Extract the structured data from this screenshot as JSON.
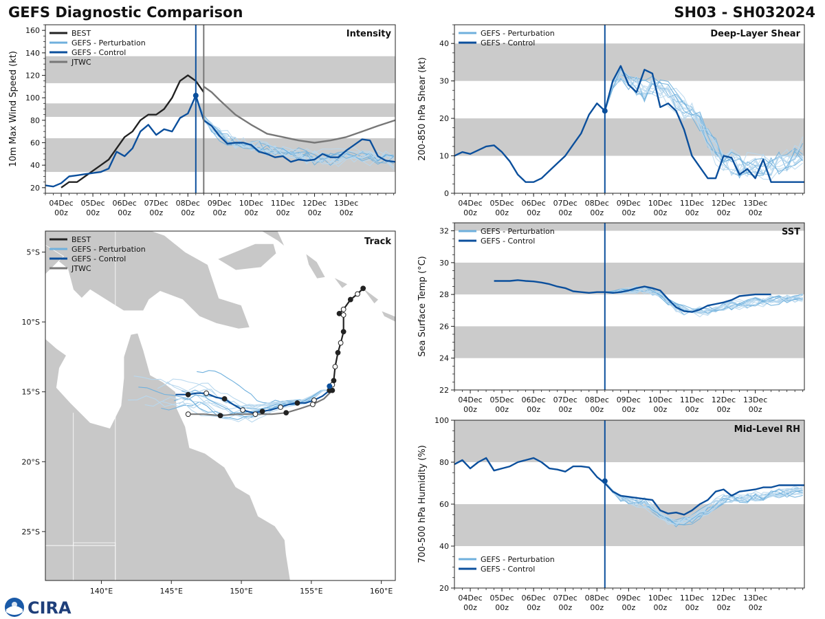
{
  "page": {
    "title_left": "GEFS Diagnostic Comparison",
    "title_right": "SH03 - SH032024",
    "logo_text": "CIRA"
  },
  "colors": {
    "best": "#222222",
    "pert": "#6fb0dd",
    "pert_light": "#b9d8ee",
    "control": "#0b4f9c",
    "jtwc": "#777777",
    "band": "#cbcbcb",
    "land": "#c8c8c8",
    "vline_analysis": "#0b4f9c",
    "vline_jtwc": "#777777"
  },
  "time_axis": {
    "domain": [
      -0.5,
      10.55
    ],
    "ticks": [
      0,
      1,
      2,
      3,
      4,
      5,
      6,
      7,
      8,
      9
    ],
    "labels": [
      [
        "04Dec",
        "00z"
      ],
      [
        "05Dec",
        "00z"
      ],
      [
        "06Dec",
        "00z"
      ],
      [
        "07Dec",
        "00z"
      ],
      [
        "08Dec",
        "00z"
      ],
      [
        "09Dec",
        "00z"
      ],
      [
        "10Dec",
        "00z"
      ],
      [
        "11Dec",
        "00z"
      ],
      [
        "12Dec",
        "00z"
      ],
      [
        "13Dec",
        "00z"
      ]
    ],
    "analysis_time": 4.25
  },
  "chart_data": [
    {
      "id": "intensity",
      "type": "line",
      "title": "Intensity",
      "ylabel": "10m Max Wind Speed (kt)",
      "ylim": [
        15,
        165
      ],
      "yticks": [
        20,
        40,
        60,
        80,
        100,
        120,
        140,
        160
      ],
      "bands": [
        [
          34,
          64
        ],
        [
          83,
          95
        ],
        [
          113,
          137
        ]
      ],
      "legend": [
        "BEST",
        "GEFS - Perturbation",
        "GEFS - Control",
        "JTWC"
      ],
      "vlines": [
        4.25,
        4.5
      ],
      "series": [
        {
          "name": "BEST",
          "style": "best",
          "x": [
            0,
            0.25,
            0.5,
            0.75,
            1,
            1.25,
            1.5,
            1.75,
            2,
            2.25,
            2.5,
            2.75,
            3,
            3.25,
            3.5,
            3.75,
            4,
            4.25,
            4.5
          ],
          "y": [
            20,
            25,
            25,
            30,
            35,
            40,
            45,
            55,
            65,
            70,
            80,
            85,
            85,
            90,
            100,
            115,
            120,
            115,
            105
          ]
        },
        {
          "name": "JTWC",
          "style": "jtwc",
          "x": [
            4.5,
            4.75,
            5,
            5.5,
            6,
            6.5,
            7,
            7.5,
            8,
            8.5,
            9,
            9.5,
            10,
            10.55
          ],
          "y": [
            110,
            105,
            98,
            85,
            76,
            68,
            65,
            62,
            60,
            62,
            65,
            70,
            75,
            80
          ]
        },
        {
          "name": "GEFS - Control",
          "style": "control",
          "x": [
            -0.5,
            -0.25,
            0,
            0.25,
            0.5,
            0.75,
            1,
            1.25,
            1.5,
            1.75,
            2,
            2.25,
            2.5,
            2.75,
            3,
            3.25,
            3.5,
            3.75,
            4,
            4.25,
            4.5,
            4.75,
            5,
            5.25,
            5.5,
            5.75,
            6,
            6.25,
            6.5,
            6.75,
            7,
            7.25,
            7.5,
            7.75,
            8,
            8.25,
            8.5,
            8.75,
            9,
            9.25,
            9.5,
            9.75,
            10,
            10.25,
            10.55
          ],
          "y": [
            22,
            21,
            24,
            30,
            31,
            32,
            33,
            34,
            37,
            52,
            48,
            55,
            70,
            76,
            67,
            72,
            70,
            82,
            86,
            102,
            80,
            75,
            66,
            59,
            60,
            60,
            58,
            52,
            50,
            47,
            48,
            43,
            45,
            44,
            45,
            50,
            47,
            47,
            53,
            58,
            63,
            62,
            48,
            44,
            43
          ]
        }
      ],
      "ensemble": {
        "start": 4.25,
        "step": 0.25,
        "base": [
          100,
          82,
          74,
          68,
          63,
          60,
          59,
          58,
          57,
          55,
          53,
          51,
          50,
          49,
          48,
          47,
          47,
          46,
          46,
          47,
          47,
          48,
          48,
          47,
          46,
          44
        ],
        "spread": 8,
        "members": 14
      },
      "analysis_point": {
        "x": 4.25,
        "y": 102
      }
    },
    {
      "id": "shear",
      "type": "line",
      "title": "Deep-Layer Shear",
      "ylabel": "200-850 hPa Shear (kt)",
      "ylim": [
        0,
        45
      ],
      "yticks": [
        0,
        10,
        20,
        30,
        40
      ],
      "bands": [
        [
          10,
          20
        ],
        [
          30,
          40
        ]
      ],
      "legend": [
        "GEFS - Perturbation",
        "GEFS - Control"
      ],
      "vlines": [
        4.25
      ],
      "series": [
        {
          "name": "GEFS - Control",
          "style": "control",
          "x": [
            -0.5,
            -0.25,
            0,
            0.25,
            0.5,
            0.75,
            1,
            1.25,
            1.5,
            1.75,
            2,
            2.25,
            2.5,
            2.75,
            3,
            3.25,
            3.5,
            3.75,
            4,
            4.25,
            4.5,
            4.75,
            5,
            5.25,
            5.5,
            5.75,
            6,
            6.25,
            6.5,
            6.75,
            7,
            7.25,
            7.5,
            7.75,
            8,
            8.25,
            8.5,
            8.75,
            9,
            9.25,
            9.5,
            9.75,
            10,
            10.25,
            10.55
          ],
          "y": [
            10,
            11,
            10.5,
            11.5,
            12.5,
            12.8,
            11,
            8.5,
            5,
            3,
            3,
            4,
            6,
            8,
            10,
            13,
            16,
            21,
            24,
            22,
            30,
            34,
            29,
            27,
            33,
            32,
            23,
            24,
            22,
            17,
            10,
            7,
            4,
            4,
            10,
            9.5,
            5,
            6.5,
            4,
            9,
            3,
            3,
            3,
            3,
            3
          ]
        }
      ],
      "ensemble": {
        "start": 4.25,
        "step": 0.25,
        "base": [
          22,
          29,
          32,
          31,
          29,
          28,
          29,
          28,
          27,
          25,
          23,
          22,
          19,
          15,
          11,
          9,
          8,
          7,
          6.5,
          7,
          7,
          7.5,
          8,
          9,
          10,
          11
        ],
        "spread": 4,
        "members": 14
      },
      "analysis_point": {
        "x": 4.25,
        "y": 22
      }
    },
    {
      "id": "sst",
      "type": "line",
      "title": "SST",
      "ylabel": "Sea Surface Temp (°C)",
      "ylim": [
        22,
        32.5
      ],
      "yticks": [
        22,
        24,
        26,
        28,
        30,
        32
      ],
      "bands": [
        [
          24,
          26
        ],
        [
          28,
          30
        ],
        [
          32,
          32.5
        ]
      ],
      "legend": [
        "GEFS - Perturbation",
        "GEFS - Control"
      ],
      "vlines": [
        4.25
      ],
      "series": [
        {
          "name": "GEFS - Control",
          "style": "control",
          "x": [
            0.75,
            1,
            1.25,
            1.5,
            1.75,
            2,
            2.25,
            2.5,
            2.75,
            3,
            3.25,
            3.5,
            3.75,
            4,
            4.25,
            4.5,
            4.75,
            5,
            5.25,
            5.5,
            5.75,
            6,
            6.25,
            6.5,
            6.75,
            7,
            7.25,
            7.5,
            7.75,
            8,
            8.25,
            8.5,
            8.75,
            9,
            9.25,
            9.5
          ],
          "y": [
            28.85,
            28.85,
            28.85,
            28.9,
            28.85,
            28.82,
            28.75,
            28.65,
            28.5,
            28.4,
            28.2,
            28.15,
            28.1,
            28.15,
            28.15,
            28.1,
            28.15,
            28.25,
            28.4,
            28.5,
            28.4,
            28.25,
            27.7,
            27.2,
            26.95,
            26.9,
            27.05,
            27.3,
            27.4,
            27.5,
            27.65,
            27.9,
            27.95,
            28,
            28,
            28
          ]
        }
      ],
      "ensemble": {
        "start": 4.25,
        "step": 0.25,
        "base": [
          28.15,
          28.15,
          28.2,
          28.25,
          28.3,
          28.3,
          28.2,
          28,
          27.6,
          27.2,
          27,
          26.9,
          26.95,
          27,
          27.1,
          27.2,
          27.3,
          27.35,
          27.4,
          27.5,
          27.55,
          27.6,
          27.65,
          27.7,
          27.75,
          27.8
        ],
        "spread": 0.35,
        "members": 14
      },
      "analysis_point": null
    },
    {
      "id": "rh",
      "type": "line",
      "title": "Mid-Level RH",
      "ylabel": "700-500 hPa Humidity (%)",
      "ylim": [
        20,
        100
      ],
      "yticks": [
        20,
        40,
        60,
        80,
        100
      ],
      "bands": [
        [
          40,
          60
        ],
        [
          80,
          100
        ]
      ],
      "legend": [
        "GEFS - Perturbation",
        "GEFS - Control"
      ],
      "legend_pos": "bottom-left",
      "vlines": [
        4.25
      ],
      "series": [
        {
          "name": "GEFS - Control",
          "style": "control",
          "x": [
            -0.5,
            -0.25,
            0,
            0.25,
            0.5,
            0.75,
            1,
            1.25,
            1.5,
            1.75,
            2,
            2.25,
            2.5,
            2.75,
            3,
            3.25,
            3.5,
            3.75,
            4,
            4.25,
            4.5,
            4.75,
            5,
            5.25,
            5.5,
            5.75,
            6,
            6.25,
            6.5,
            6.75,
            7,
            7.25,
            7.5,
            7.75,
            8,
            8.25,
            8.5,
            8.75,
            9,
            9.25,
            9.5,
            9.75,
            10,
            10.25,
            10.55
          ],
          "y": [
            79,
            81,
            77,
            80,
            82,
            76,
            77,
            78,
            80,
            81,
            82,
            80,
            77,
            76.5,
            75.5,
            78,
            78,
            77.5,
            73,
            70,
            66,
            64,
            63.5,
            63,
            62.5,
            62,
            57,
            55.5,
            56,
            55,
            57,
            60,
            62,
            66,
            67,
            64,
            66,
            66.5,
            67,
            68,
            68,
            69,
            69,
            69,
            69
          ]
        }
      ],
      "ensemble": {
        "start": 4.25,
        "step": 0.25,
        "base": [
          71,
          66,
          63,
          62,
          61,
          60,
          58,
          55,
          52,
          51,
          52,
          53,
          55,
          57,
          60,
          62,
          63,
          63,
          63,
          63.5,
          64,
          64.5,
          65,
          65.5,
          66,
          66.5
        ],
        "spread": 3,
        "members": 14
      },
      "analysis_point": {
        "x": 4.25,
        "y": 71
      }
    },
    {
      "id": "track",
      "type": "line",
      "title": "Track",
      "xlim": [
        136,
        161
      ],
      "ylim": [
        -28.5,
        -3.5
      ],
      "xticks": [
        140,
        145,
        150,
        155,
        160
      ],
      "xticklabels": [
        "140°E",
        "145°E",
        "150°E",
        "155°E",
        "160°E"
      ],
      "yticks": [
        -5,
        -10,
        -15,
        -20,
        -25
      ],
      "yticklabels": [
        "5°S",
        "10°S",
        "15°S",
        "20°S",
        "25°S"
      ],
      "legend": [
        "BEST",
        "GEFS - Perturbation",
        "GEFS - Control",
        "JTWC"
      ],
      "best": {
        "lon": [
          158.7,
          158.3,
          157.8,
          157.3,
          157.0,
          157.3,
          157.3,
          157.1,
          156.9,
          156.7,
          156.6,
          156.5,
          156.3
        ],
        "lat": [
          -7.6,
          -8.0,
          -8.4,
          -9.1,
          -9.4,
          -9.5,
          -10.7,
          -11.5,
          -12.2,
          -13.2,
          -14.2,
          -14.5,
          -14.9
        ]
      },
      "control": {
        "lon": [
          156.3,
          155.8,
          155.2,
          154.6,
          154.0,
          153.4,
          152.8,
          152.1,
          151.5,
          150.8,
          150.1,
          149.4,
          148.8,
          148.2,
          147.5,
          146.8,
          146.2,
          145.3
        ],
        "lat": [
          -14.9,
          -15.3,
          -15.6,
          -15.8,
          -15.8,
          -15.9,
          -16.1,
          -16.3,
          -16.4,
          -16.5,
          -16.3,
          -15.9,
          -15.5,
          -15.4,
          -15.1,
          -15.1,
          -15.2,
          -15.2
        ]
      },
      "jtwc": {
        "lon": [
          156.5,
          155.9,
          155.1,
          154.2,
          153.2,
          152.2,
          151.0,
          149.7,
          148.5,
          147.3,
          146.2
        ],
        "lat": [
          -14.9,
          -15.5,
          -15.9,
          -16.2,
          -16.5,
          -16.6,
          -16.6,
          -16.6,
          -16.7,
          -16.6,
          -16.6
        ]
      },
      "ensemble_tracks": {
        "members": 14,
        "spread_lat": 0.9,
        "end_lon_range": [
          141.5,
          147.5
        ]
      },
      "current_pos": {
        "lon": 156.3,
        "lat": -14.6
      }
    }
  ]
}
